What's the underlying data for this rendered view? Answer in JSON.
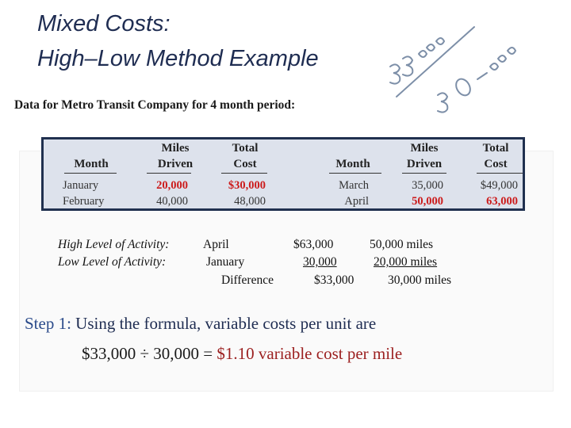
{
  "title": {
    "line1": "Mixed Costs:",
    "line2": "High–Low Method Example"
  },
  "annotations": {
    "handwritten_high": "33,000",
    "handwritten_low": "30,000",
    "ink_color": "#7d8fa8"
  },
  "subtitle": "Data for Metro Transit Company for 4 month period:",
  "table": {
    "headers": {
      "month": "Month",
      "miles_driven": [
        "Miles",
        "Driven"
      ],
      "total_cost": [
        "Total",
        "Cost"
      ]
    },
    "left_rows": [
      {
        "month": "January",
        "miles": "20,000",
        "cost": "$30,000",
        "highlight": true
      },
      {
        "month": "February",
        "miles": "40,000",
        "cost": "48,000",
        "highlight": false
      }
    ],
    "right_rows": [
      {
        "month": "March",
        "miles": "35,000",
        "cost": "$49,000",
        "highlight": false
      },
      {
        "month": "April",
        "miles": "50,000",
        "cost": "63,000",
        "highlight": true
      }
    ]
  },
  "activity": {
    "high_label": "High Level of Activity:",
    "high_month": "April",
    "high_cost": "$63,000",
    "high_miles": "50,000 miles",
    "low_label": "Low Level of Activity:",
    "low_month": "January",
    "low_cost": "30,000",
    "low_miles": "20,000 miles",
    "diff_label": "Difference",
    "diff_cost": "$33,000",
    "diff_miles": "30,000 miles"
  },
  "step1": {
    "prefix": "Step 1:",
    "text": "Using the formula, variable costs per unit are",
    "formula": "$33,000 ÷ 30,000 = ",
    "result": "$1.10 variable cost per mile"
  }
}
